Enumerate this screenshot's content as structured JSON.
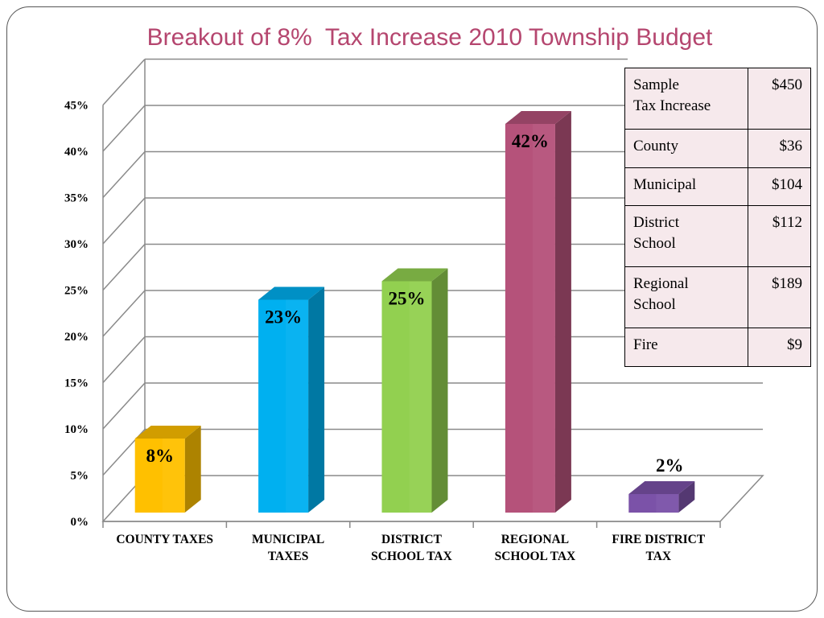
{
  "slide": {
    "title": "Breakout of 8%  Tax Increase 2010 Township Budget"
  },
  "chart_data": {
    "type": "bar",
    "title": "Breakout of 8%  Tax Increase 2010 Township Budget",
    "categories": [
      [
        "COUNTY TAXES"
      ],
      [
        "MUNICIPAL",
        "TAXES"
      ],
      [
        "DISTRICT",
        "SCHOOL TAX"
      ],
      [
        "REGIONAL",
        "SCHOOL TAX"
      ],
      [
        "FIRE DISTRICT",
        "TAX"
      ]
    ],
    "values": [
      8,
      23,
      25,
      42,
      2
    ],
    "data_labels": [
      "8%",
      "23%",
      "25%",
      "42%",
      "2%"
    ],
    "colors": [
      "#ffc000",
      "#00b0f0",
      "#92d050",
      "#b5527a",
      "#7b52a8"
    ],
    "y_ticks": [
      0,
      5,
      10,
      15,
      20,
      25,
      30,
      35,
      40,
      45
    ],
    "y_tick_labels": [
      "0%",
      "5%",
      "10%",
      "15%",
      "20%",
      "25%",
      "30%",
      "35%",
      "40%",
      "45%"
    ],
    "ylim": [
      0,
      45
    ],
    "grid": true,
    "style": "3d-column"
  },
  "table": {
    "rows": [
      {
        "label": [
          "Sample",
          "Tax Increase"
        ],
        "amount": "$450"
      },
      {
        "label": [
          "County"
        ],
        "amount": "$36"
      },
      {
        "label": [
          "Municipal"
        ],
        "amount": "$104"
      },
      {
        "label": [
          "District",
          "School"
        ],
        "amount": "$112"
      },
      {
        "label": [
          "Regional",
          "School"
        ],
        "amount": "$189"
      },
      {
        "label": [
          "Fire"
        ],
        "amount": "$9"
      }
    ]
  }
}
